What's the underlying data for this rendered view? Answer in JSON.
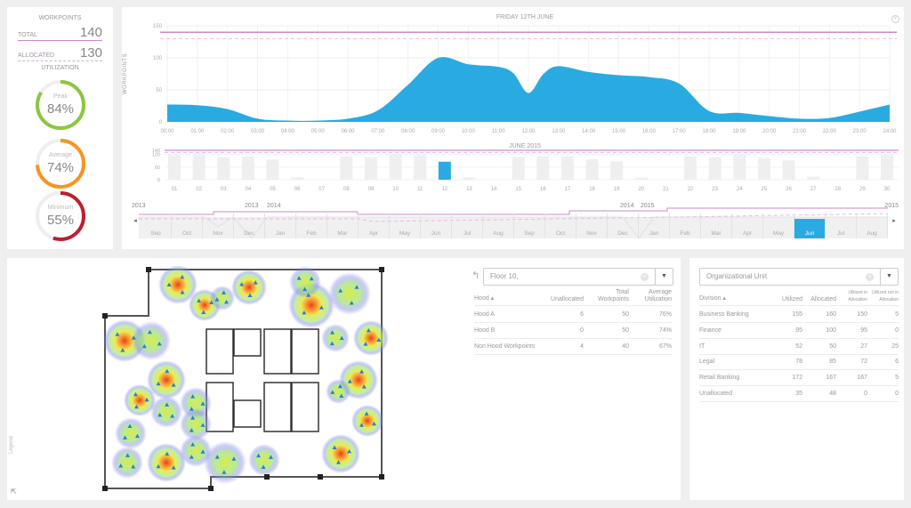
{
  "workpoints": {
    "title": "WORKPOINTS",
    "total_label": "TOTAL",
    "total_value": "140",
    "allocated_label": "ALLOCATED",
    "allocated_value": "130",
    "utilization_title": "UTILIZATION",
    "gauges": [
      {
        "label": "Peak",
        "value": "84%",
        "fraction": 0.84,
        "color": "#8cc63f"
      },
      {
        "label": "Average",
        "value": "74%",
        "fraction": 0.74,
        "color": "#f7941d"
      },
      {
        "label": "Minimum",
        "value": "55%",
        "fraction": 0.55,
        "color": "#be1e2d"
      }
    ]
  },
  "chart_data": [
    {
      "type": "area",
      "title": "FRIDAY 12TH JUNE",
      "ylabel": "WORKPOINTS",
      "ylim": [
        0,
        150
      ],
      "yticks": [
        "0",
        "50",
        "100",
        "150"
      ],
      "x_labels": [
        "00:00",
        "01:00",
        "02:00",
        "03:00",
        "04:00",
        "05:00",
        "06:00",
        "07:00",
        "08:00",
        "09:00",
        "10:00",
        "11:00",
        "12:00",
        "13:00",
        "14:00",
        "15:00",
        "16:00",
        "17:00",
        "18:00",
        "19:00",
        "20:00",
        "21:00",
        "22:00",
        "23:00",
        "24:00"
      ],
      "x": [
        0,
        1,
        2,
        3,
        4,
        5,
        6,
        7,
        8,
        9,
        10,
        11,
        11.5,
        12,
        12.5,
        13,
        14,
        15,
        16,
        17,
        18,
        19,
        20,
        21,
        22,
        23,
        24
      ],
      "values": [
        27,
        26,
        20,
        5,
        2,
        2,
        5,
        18,
        58,
        100,
        90,
        86,
        76,
        45,
        75,
        87,
        78,
        73,
        70,
        60,
        17,
        14,
        9,
        5,
        6,
        16,
        27
      ],
      "total_line": 140,
      "allocated_line": 130,
      "color": "#29abe2"
    },
    {
      "type": "bar",
      "title": "JUNE 2015",
      "ylim": [
        0,
        140
      ],
      "yticks": [
        "0",
        "60",
        "120",
        "140"
      ],
      "categories": [
        "01",
        "02",
        "03",
        "04",
        "05",
        "06",
        "07",
        "08",
        "09",
        "10",
        "11",
        "12",
        "13",
        "14",
        "15",
        "16",
        "17",
        "18",
        "19",
        "20",
        "21",
        "22",
        "23",
        "24",
        "25",
        "26",
        "27",
        "28",
        "29",
        "30"
      ],
      "values": [
        118,
        126,
        106,
        112,
        96,
        12,
        0,
        112,
        106,
        122,
        118,
        86,
        12,
        0,
        108,
        112,
        112,
        98,
        88,
        10,
        0,
        112,
        108,
        122,
        104,
        92,
        14,
        0,
        112,
        118
      ],
      "selected": "12",
      "total_line": 140,
      "allocated_line": 130
    }
  ],
  "timeline": {
    "year_labels": [
      "2013",
      "2013",
      "2014",
      "2014",
      "2015",
      "2015"
    ],
    "months": [
      "Sep",
      "Oct",
      "Nov",
      "Dec",
      "Jan",
      "Feb",
      "Mar",
      "Apr",
      "May",
      "Jun",
      "Jul",
      "Aug",
      "Sep",
      "Oct",
      "Nov",
      "Dec",
      "Jan",
      "Feb",
      "Mar",
      "Apr",
      "May",
      "Jun",
      "Jul",
      "Aug"
    ],
    "selected_index": 21
  },
  "hood_table": {
    "filter_value": "Floor 10,",
    "headers": [
      "Hood ▴",
      "Unallocated",
      "Total Workpoints",
      "Average Utilization"
    ],
    "rows": [
      [
        "Hood A",
        "6",
        "50",
        "76%"
      ],
      [
        "Hood B",
        "0",
        "50",
        "74%"
      ],
      [
        "Non Hood Workpoints",
        "4",
        "40",
        "67%"
      ]
    ]
  },
  "org_table": {
    "filter_placeholder": "Organizational Unit",
    "headers": [
      "Division ▴",
      "Utilized",
      "Allocated",
      "Utilized in Allocation",
      "Utilized not in Allocation"
    ],
    "rows": [
      [
        "Business Banking",
        "155",
        "160",
        "150",
        "5"
      ],
      [
        "Finance",
        "95",
        "100",
        "95",
        "0"
      ],
      [
        "IT",
        "52",
        "50",
        "27",
        "25"
      ],
      [
        "Legal",
        "78",
        "85",
        "72",
        "6"
      ],
      [
        "Retail Banking",
        "172",
        "167",
        "167",
        "5"
      ],
      [
        "Unallocated",
        "35",
        "48",
        "0",
        "0"
      ]
    ]
  },
  "legend_label": "Legend",
  "colors": {
    "accent": "#29abe2",
    "capacity_line": "#c98ac9",
    "bar_grey": "#efefef"
  }
}
